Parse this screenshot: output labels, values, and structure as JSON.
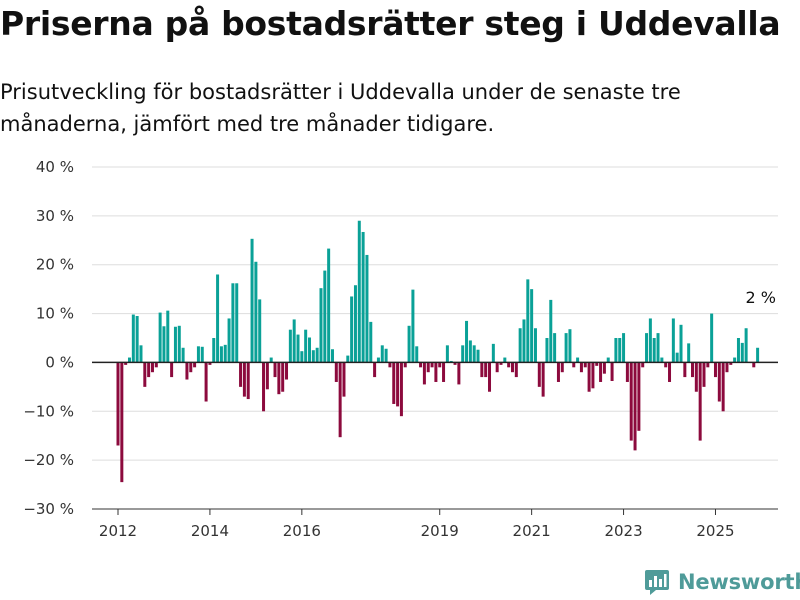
{
  "header": {
    "title": "Priserna på bostadsrätter steg i Uddevalla",
    "subtitle": "Prisutveckling för bostadsrätter i Uddevalla under de senaste tre månaderna, jämfört med tre månader tidigare."
  },
  "brand": {
    "name": "Newsworthy"
  },
  "colors": {
    "positive": "#0aa197",
    "negative": "#8c0a3d",
    "zero_line": "#222222",
    "grid": "#dddddd",
    "brand": "#4f9b99"
  },
  "chart_data": {
    "type": "bar",
    "ylim": [
      -30,
      40
    ],
    "yticks": [
      -30,
      -20,
      -10,
      0,
      10,
      20,
      30,
      40
    ],
    "ytick_labels": [
      "−30 %",
      "−20 %",
      "−10 %",
      "0 %",
      "10 %",
      "20 %",
      "30 %",
      "40 %"
    ],
    "xticks": [
      "2012",
      "2014",
      "2016",
      "2019",
      "2021",
      "2023",
      "2025"
    ],
    "x_start": "2012-01",
    "grid": true,
    "end_label": "2 %",
    "values": [
      -17,
      -24.5,
      -0.5,
      1,
      9.8,
      9.5,
      3.5,
      -5,
      -3,
      -2,
      -1,
      10.2,
      7.4,
      10.6,
      -3,
      7.3,
      7.5,
      3,
      -3.5,
      -2,
      -1,
      3.3,
      3.2,
      -8,
      -0.5,
      5,
      18,
      3.3,
      3.6,
      9,
      16.2,
      16.2,
      -5,
      -7,
      -7.5,
      25.3,
      20.6,
      12.9,
      -10,
      -5.5,
      1,
      -3,
      -6.5,
      -6,
      -3.5,
      6.7,
      8.8,
      5.7,
      2.3,
      6.7,
      5.1,
      2.5,
      3,
      15.2,
      18.8,
      23.3,
      2.7,
      -4,
      -15.3,
      -7,
      1.4,
      13.5,
      15.8,
      29,
      26.7,
      22,
      8.3,
      -3,
      1,
      3.5,
      2.8,
      -1,
      -8.5,
      -9,
      -11,
      -1,
      7.5,
      14.9,
      3.3,
      -1,
      -4.5,
      -2,
      -1,
      -4,
      -1,
      -4,
      3.5,
      0.3,
      -0.5,
      -4.5,
      3.5,
      8.5,
      4.5,
      3.5,
      2.6,
      -3,
      -3,
      -6,
      3.8,
      -2,
      -0.5,
      1,
      -1,
      -2,
      -3,
      7,
      8.8,
      17,
      15,
      7,
      -5,
      -7,
      5,
      12.8,
      6,
      -4,
      -2,
      6,
      6.8,
      -1,
      1,
      -2,
      -1,
      -6,
      -5.3,
      -0.7,
      -4,
      -2.3,
      1,
      -3.8,
      5,
      5,
      6,
      -4,
      -16,
      -18,
      -14,
      -1,
      6,
      9,
      5,
      6,
      1,
      -1,
      -4,
      9,
      2,
      7.7,
      -3,
      3.9,
      -3,
      -6,
      -16,
      -5,
      -1,
      10
    ],
    "tail_values": [
      -3,
      -8,
      -10,
      -2,
      -0.5,
      1,
      5,
      4,
      7,
      0,
      -1,
      3,
      2
    ]
  }
}
